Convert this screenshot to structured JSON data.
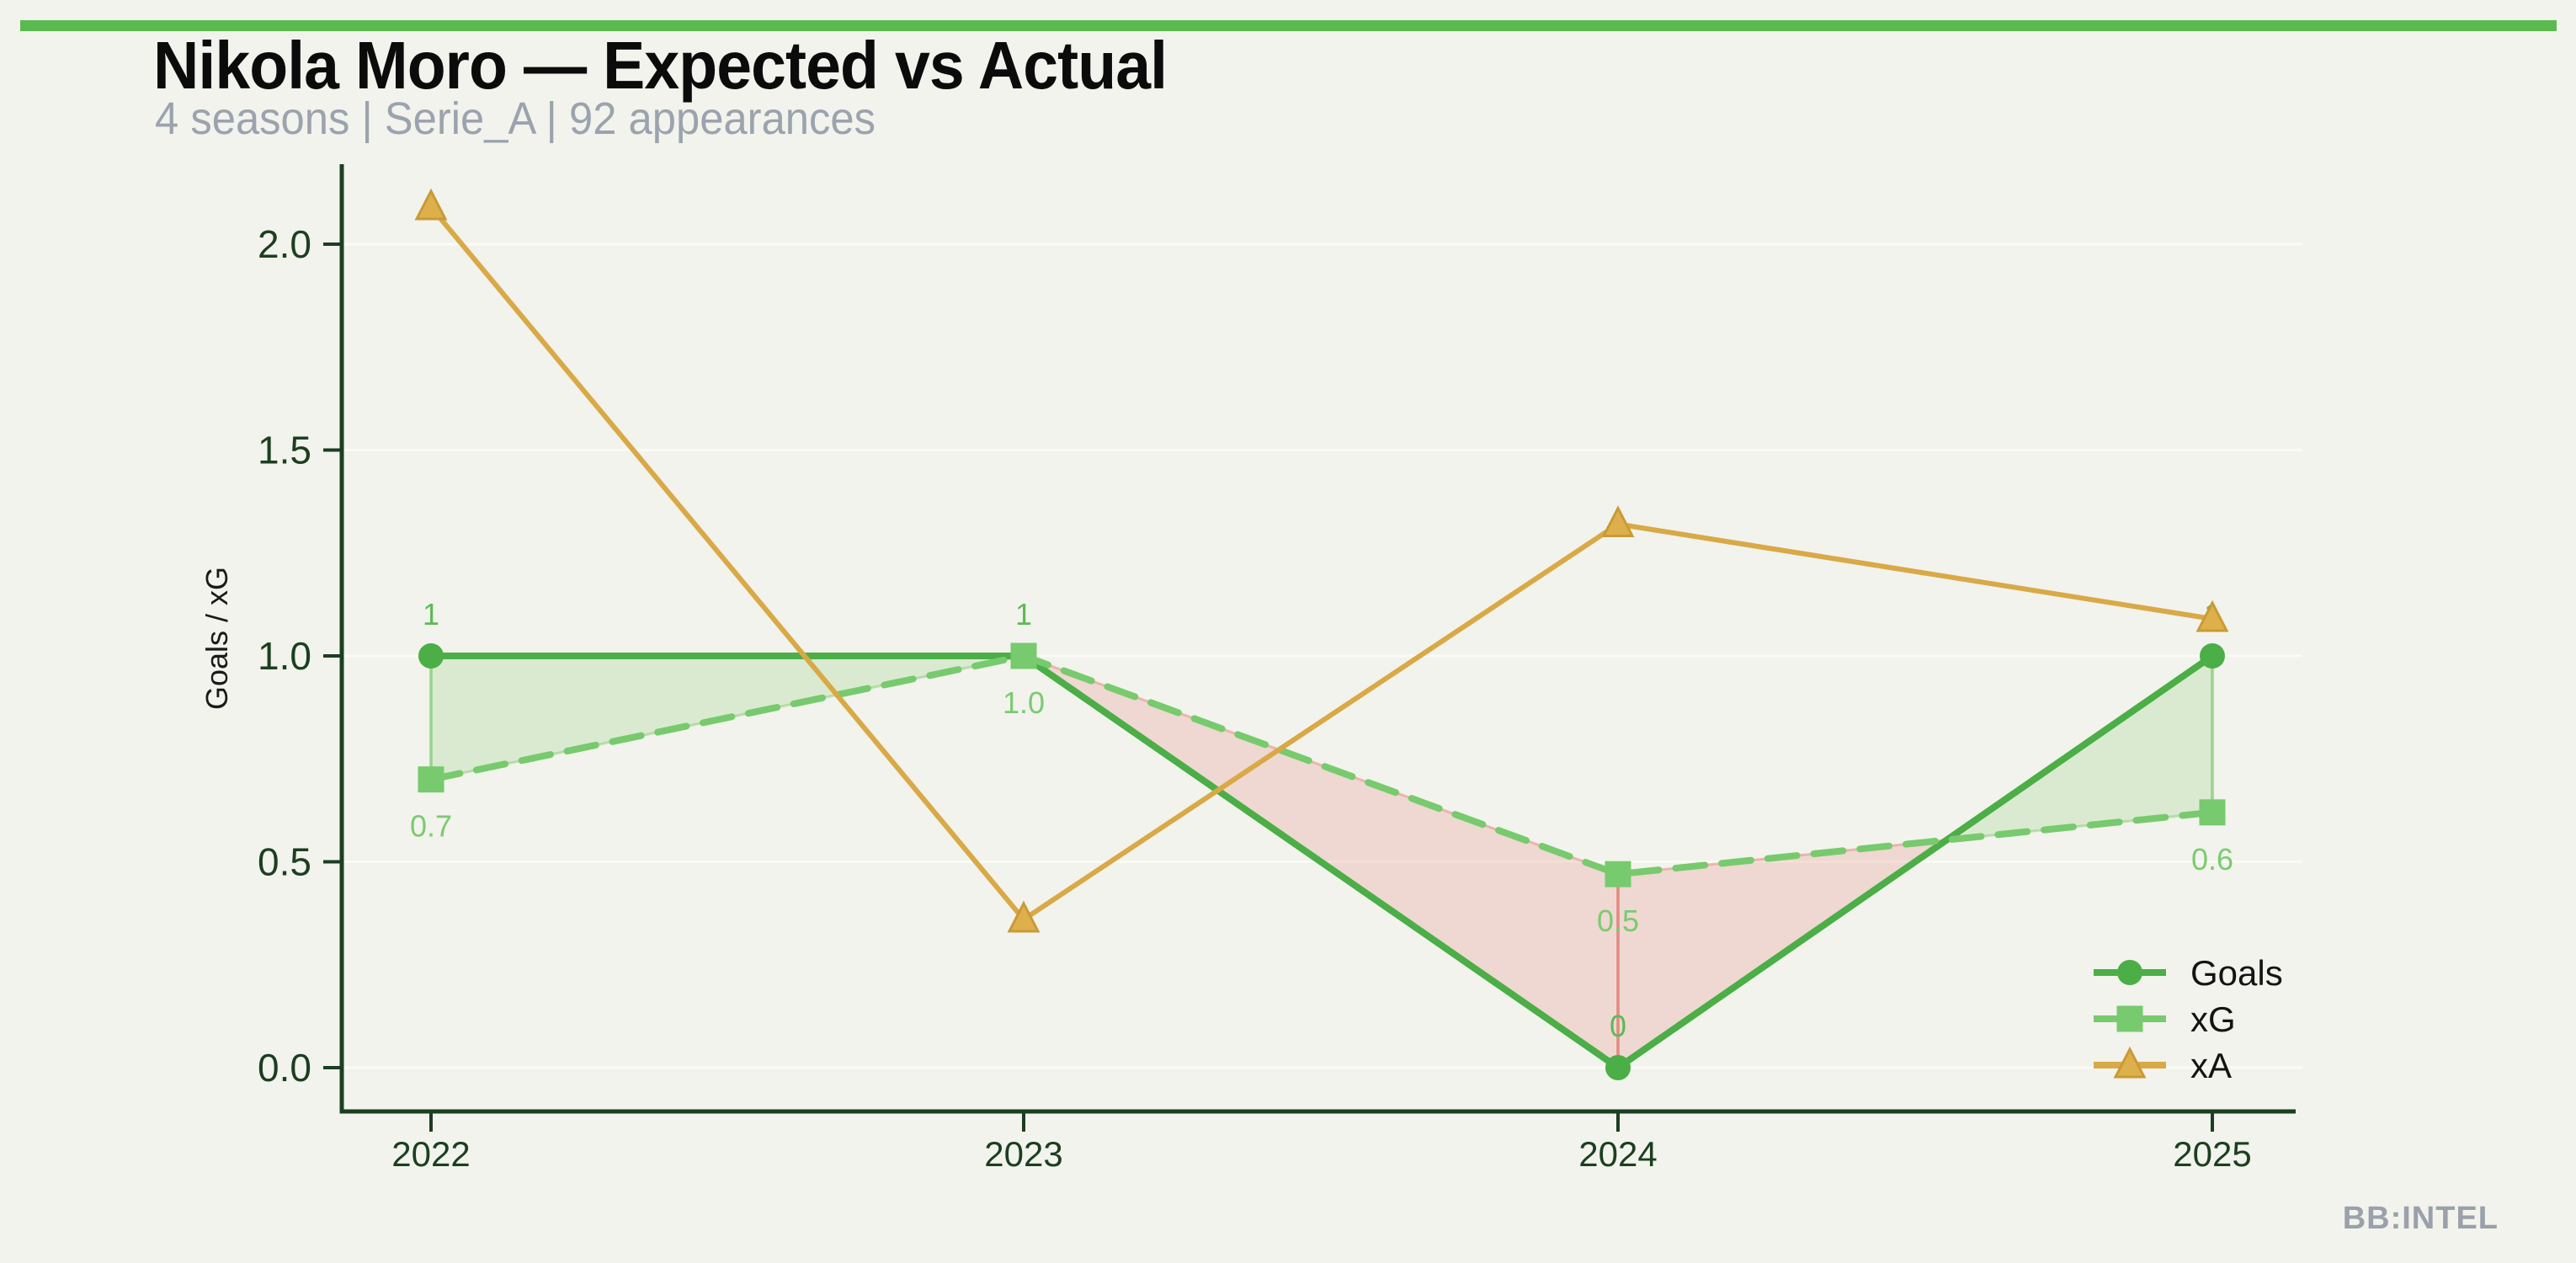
{
  "header": {
    "title": "Nikola Moro — Expected vs Actual",
    "subtitle": "4 seasons | Serie_A | 92 appearances"
  },
  "footer": {
    "watermark": "BB:INTEL"
  },
  "colors": {
    "background": "#f2f3ec",
    "top_bar": "#5bba4f",
    "axis_dark_green": "#1b3f20",
    "gridline": "#fafbf4",
    "goals_green": "#4bae47",
    "xg_green": "#77ca6d",
    "xa_gold": "#d9a947",
    "fill_above": "rgba(92,184,70,0.16)",
    "fill_below": "rgba(224,123,114,0.22)",
    "subtitle_gray": "#9aa3ae",
    "watermark_gray": "#9aa1ab",
    "legend_text": "#141414",
    "axis_label_black": "#1a1a1a"
  },
  "chart_data": {
    "type": "line",
    "title": "Nikola Moro — Expected vs Actual",
    "subtitle": "4 seasons | Serie_A | 92 appearances",
    "x": [
      2022,
      2023,
      2024,
      2025
    ],
    "x_tick_labels": [
      "2022",
      "2023",
      "2024",
      "2025"
    ],
    "y_ticks": [
      0.0,
      0.5,
      1.0,
      1.5,
      2.0
    ],
    "y_tick_labels": [
      "0.0",
      "0.5",
      "1.0",
      "1.5",
      "2.0"
    ],
    "ylabel": "Goals / xG",
    "ylim": [
      0,
      2.2
    ],
    "grid": "horizontal-subtle",
    "legend_position": "lower-right",
    "series": [
      {
        "name": "Goals",
        "values": [
          1,
          1,
          0,
          1
        ],
        "point_labels": [
          "1",
          "1",
          "0",
          "1"
        ],
        "color": "#4bae47",
        "label_color": "#5eba54",
        "marker": "circle",
        "line_style": "solid"
      },
      {
        "name": "xG",
        "values": [
          0.7,
          1.0,
          0.47,
          0.62
        ],
        "point_labels": [
          "0.7",
          "1.0",
          "0.5",
          "0.6"
        ],
        "color": "#77ca6d",
        "label_color": "#7cca70",
        "marker": "square",
        "line_style": "dashed"
      },
      {
        "name": "xA",
        "values": [
          2.09,
          0.36,
          1.32,
          1.09
        ],
        "point_labels": [],
        "color": "#d9a947",
        "marker_fill": "#ddb04c",
        "marker_edge": "#c99a36",
        "marker": "triangle",
        "line_style": "solid"
      }
    ],
    "fill_between": {
      "between": [
        "Goals",
        "xG"
      ],
      "above_color": "rgba(92,184,70,0.16)",
      "below_color": "rgba(224,123,114,0.22)"
    }
  }
}
